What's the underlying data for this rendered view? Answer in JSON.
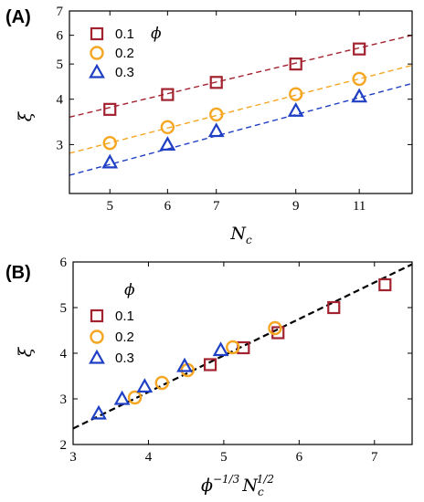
{
  "chart_data": [
    {
      "panel": "(A)",
      "type": "scatter",
      "xscale": "log",
      "yscale": "log",
      "xlim": [
        4.4,
        13
      ],
      "ylim": [
        2.2,
        7
      ],
      "xlabel": {
        "base": "N",
        "sub": "c"
      },
      "ylabel": "ξ",
      "xticks": [
        5,
        6,
        7,
        9,
        11
      ],
      "yticks": [
        3,
        4,
        5,
        6,
        7
      ],
      "legend": {
        "title": "ϕ",
        "position": "top-left"
      },
      "series": [
        {
          "name": "0.1",
          "marker": "square",
          "color": "#a3222f",
          "x": [
            5,
            6,
            7,
            9,
            11
          ],
          "y": [
            3.75,
            4.12,
            4.45,
            5.0,
            5.5
          ],
          "fit": {
            "x": [
              4.4,
              13
            ],
            "y": [
              3.57,
              6.0
            ]
          }
        },
        {
          "name": "0.2",
          "marker": "circle",
          "color": "#f5a623",
          "x": [
            5,
            6,
            7,
            9,
            11
          ],
          "y": [
            3.03,
            3.35,
            3.63,
            4.13,
            4.55
          ],
          "fit": {
            "x": [
              4.4,
              13
            ],
            "y": [
              2.84,
              4.96
            ]
          }
        },
        {
          "name": "0.3",
          "marker": "triangle",
          "color": "#1f3fc4",
          "x": [
            5,
            6,
            7,
            9,
            11
          ],
          "y": [
            2.68,
            3.0,
            3.27,
            3.72,
            4.07
          ],
          "fit": {
            "x": [
              4.4,
              13
            ],
            "y": [
              2.47,
              4.42
            ]
          }
        }
      ]
    },
    {
      "panel": "(B)",
      "type": "scatter",
      "xlim": [
        3,
        7.5
      ],
      "ylim": [
        2,
        6
      ],
      "xlabel": {
        "base1": "ϕ",
        "sup1": "−1/3",
        "base2": "N",
        "sub2": "c",
        "sup2": "1/2"
      },
      "ylabel": "ξ",
      "xticks": [
        3,
        4,
        5,
        6,
        7
      ],
      "yticks": [
        2,
        3,
        4,
        5,
        6
      ],
      "legend": {
        "title": "ϕ",
        "position": "top-left"
      },
      "fit": {
        "x": [
          3,
          7.5
        ],
        "y": [
          2.35,
          5.95
        ],
        "color": "#000000"
      },
      "series": [
        {
          "name": "0.1",
          "marker": "square",
          "color": "#a3222f",
          "x": [
            4.82,
            5.26,
            5.72,
            6.46,
            7.14
          ],
          "y": [
            3.75,
            4.12,
            4.45,
            5.0,
            5.5
          ]
        },
        {
          "name": "0.2",
          "marker": "circle",
          "color": "#f5a623",
          "x": [
            3.82,
            4.18,
            4.52,
            5.12,
            5.68
          ],
          "y": [
            3.03,
            3.35,
            3.63,
            4.13,
            4.55
          ]
        },
        {
          "name": "0.3",
          "marker": "triangle",
          "color": "#1f3fc4",
          "x": [
            3.34,
            3.65,
            3.95,
            4.48,
            4.96
          ],
          "y": [
            2.68,
            3.0,
            3.27,
            3.72,
            4.07
          ]
        }
      ]
    }
  ]
}
